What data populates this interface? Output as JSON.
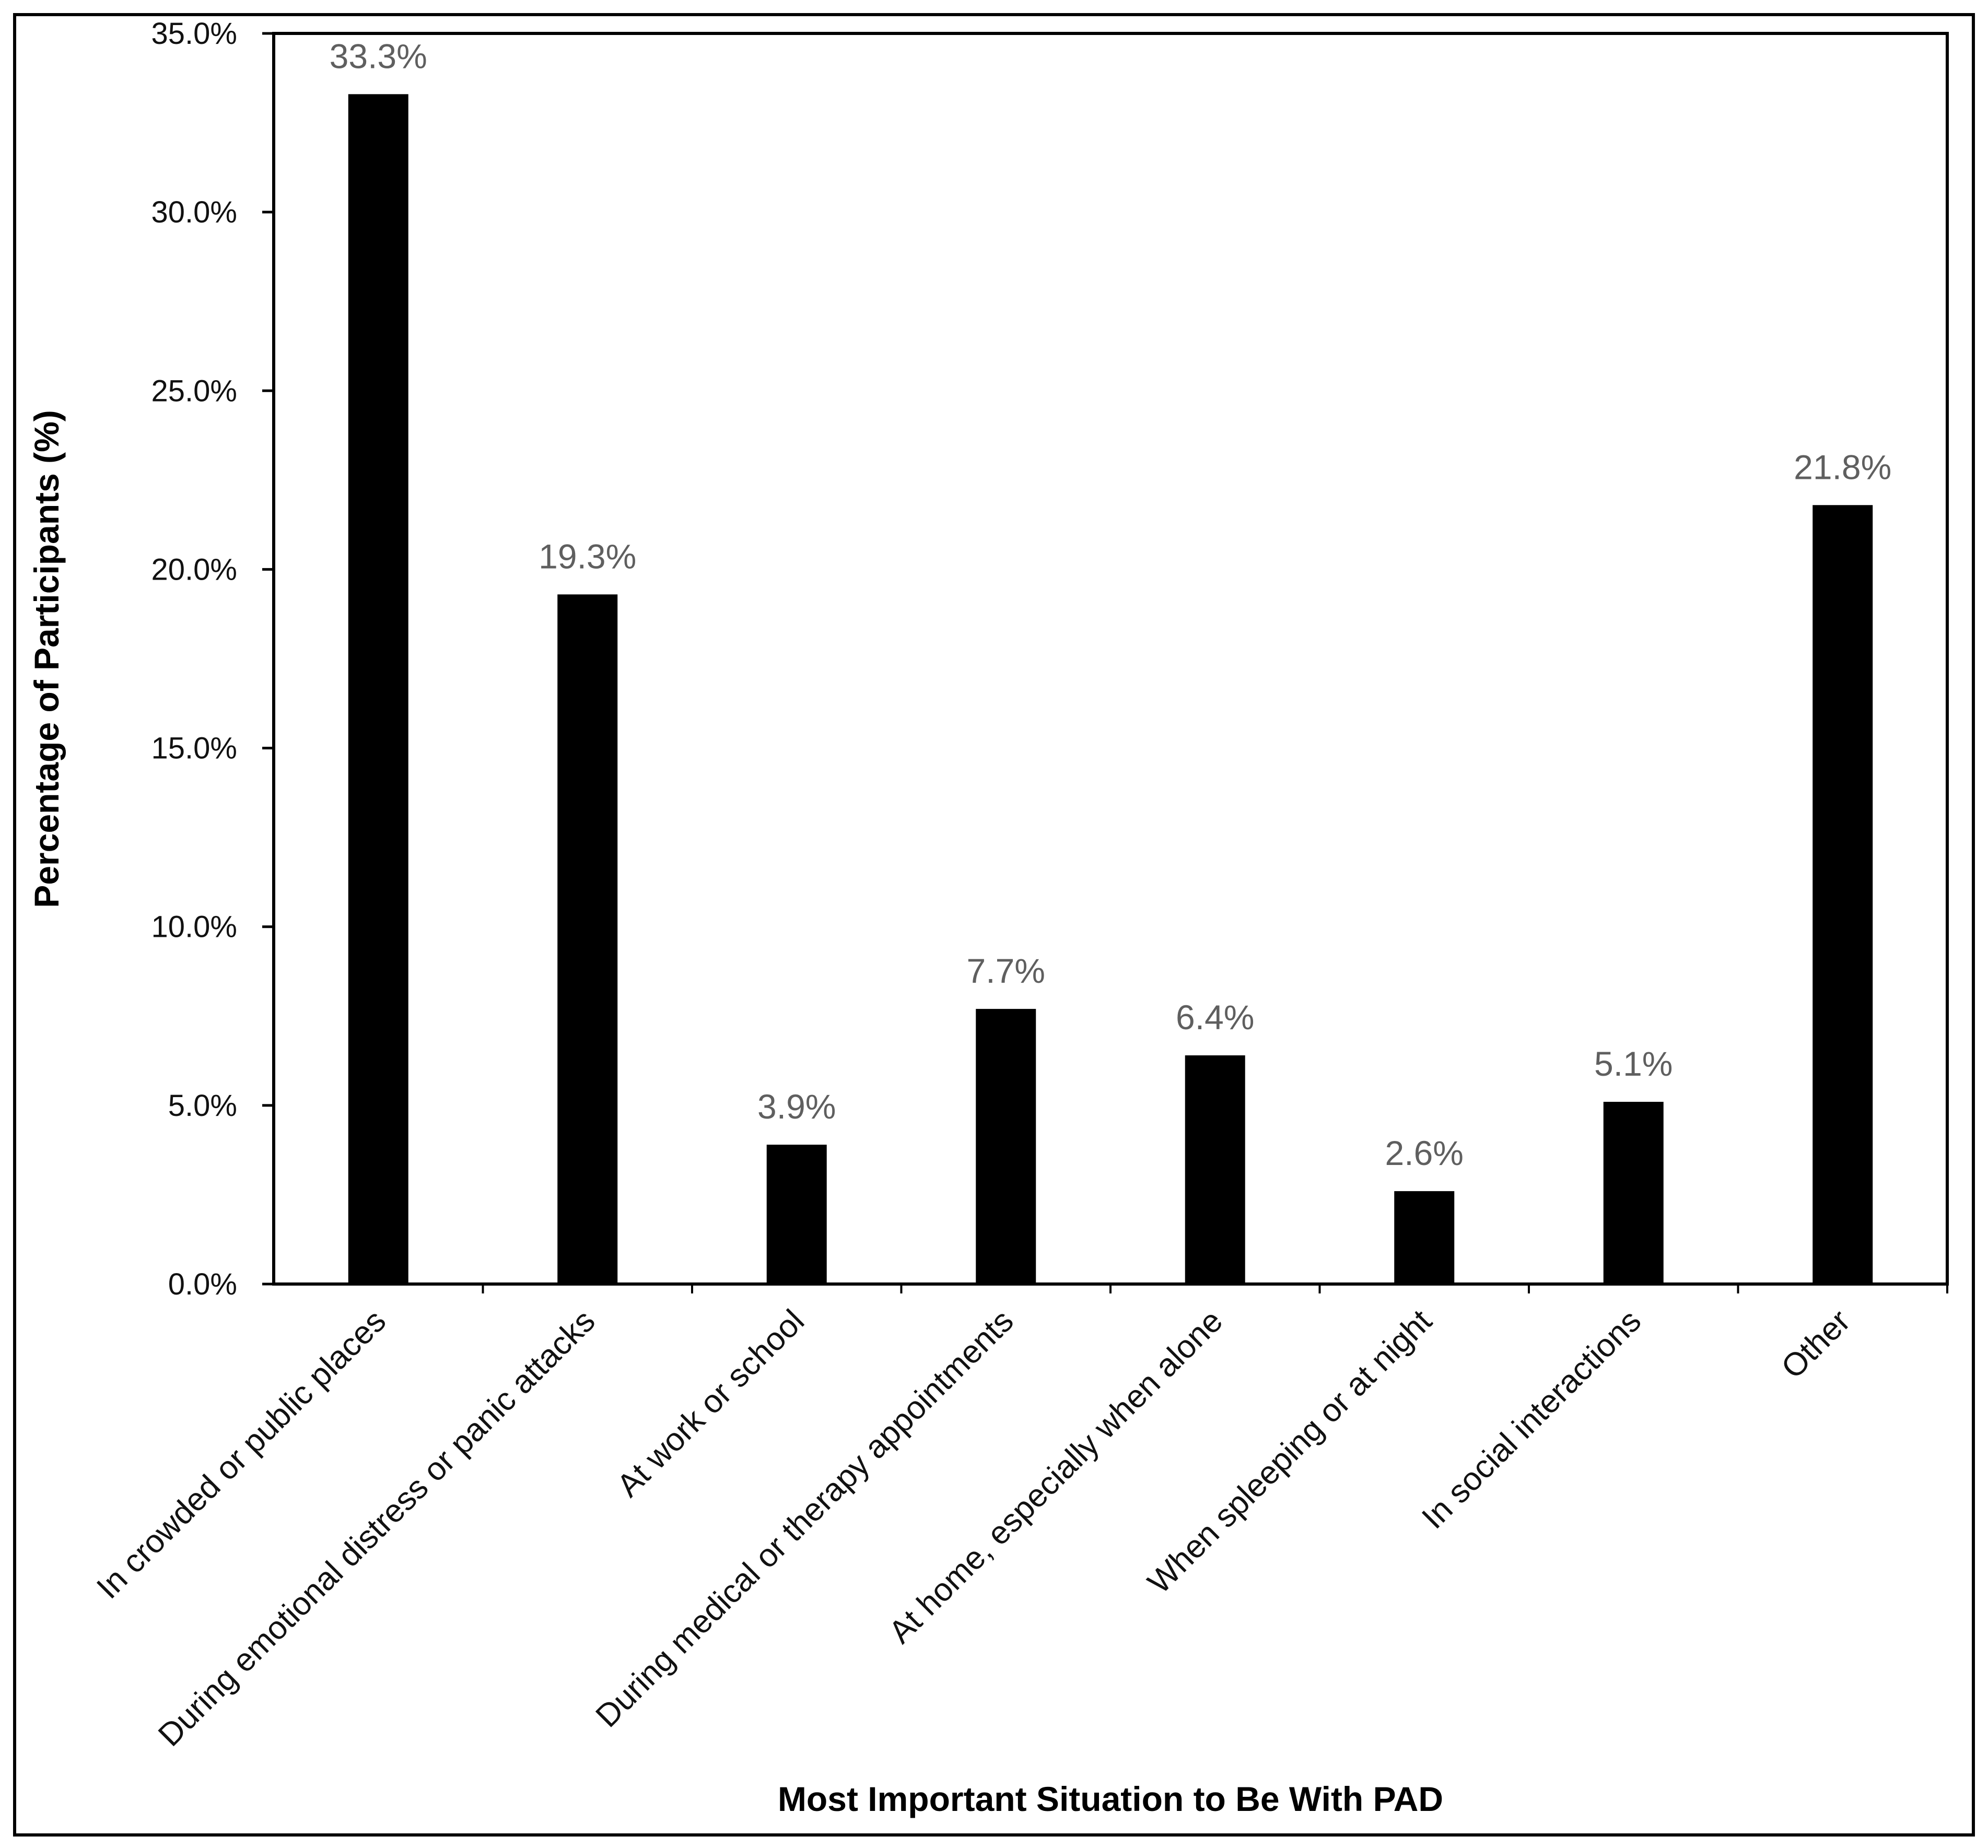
{
  "chart_data": {
    "type": "bar",
    "title": "",
    "xlabel": "Most Important Situation to Be With PAD",
    "ylabel": "Percentage of Participants (%)",
    "ylim": [
      0,
      35
    ],
    "y_ticks": [
      0,
      5,
      10,
      15,
      20,
      25,
      30,
      35
    ],
    "y_tick_labels": [
      "0.0%",
      "5.0%",
      "10.0%",
      "15.0%",
      "20.0%",
      "25.0%",
      "30.0%",
      "35.0%"
    ],
    "categories": [
      "In crowded or public places",
      "During emotional distress or panic attacks",
      "At work or school",
      "During medical or therapy appointments",
      "At home, especially when alone",
      "When spleeping or at night",
      "In social interactions",
      "Other"
    ],
    "values": [
      33.3,
      19.3,
      3.9,
      7.7,
      6.4,
      2.6,
      5.1,
      21.8
    ],
    "data_labels": [
      "33.3%",
      "19.3%",
      "3.9%",
      "7.7%",
      "6.4%",
      "2.6%",
      "5.1%",
      "21.8%"
    ],
    "grid": false,
    "legend": "none",
    "colors": {
      "bar": "#000000",
      "data_label": "#5f5f5f",
      "axis": "#000000"
    }
  }
}
